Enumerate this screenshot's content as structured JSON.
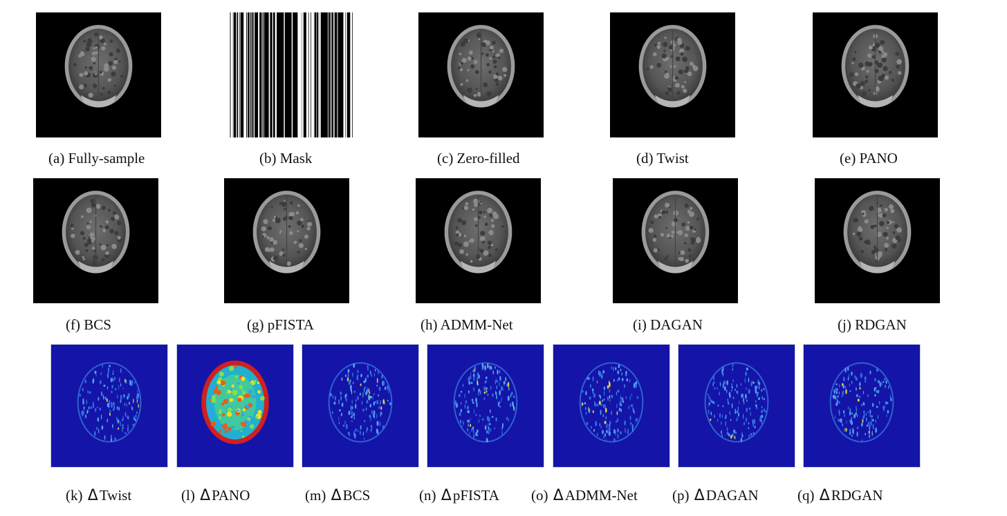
{
  "row1": [
    {
      "label": "(a) Fully-sample",
      "kind": "brain"
    },
    {
      "label": "(b) Mask",
      "kind": "mask"
    },
    {
      "label": "(c) Zero-filled",
      "kind": "brain"
    },
    {
      "label": "(d) Twist",
      "kind": "brain"
    },
    {
      "label": "(e) PANO",
      "kind": "brain"
    }
  ],
  "row2": [
    {
      "label": "(f) BCS",
      "kind": "brain"
    },
    {
      "label": "(g) pFISTA",
      "kind": "brain"
    },
    {
      "label": "(h) ADMM-Net",
      "kind": "brain"
    },
    {
      "label": "(i) DAGAN",
      "kind": "brain"
    },
    {
      "label": "(j) RDGAN",
      "kind": "brain"
    }
  ],
  "row3": [
    {
      "prefix": "(k)",
      "delta": "Δ",
      "name": "Twist"
    },
    {
      "prefix": "(l)",
      "delta": "Δ",
      "name": "PANO"
    },
    {
      "prefix": "(m)",
      "delta": "Δ",
      "name": "BCS"
    },
    {
      "prefix": "(n)",
      "delta": "Δ",
      "name": "pFISTA"
    },
    {
      "prefix": "(o)",
      "delta": "Δ",
      "name": "ADMM-Net"
    },
    {
      "prefix": "(p)",
      "delta": "Δ",
      "name": "DAGAN"
    },
    {
      "prefix": "(q)",
      "delta": "Δ",
      "name": "RDGAN"
    }
  ],
  "colors": {
    "errorBackground": "#1414a8",
    "imageBackground": "#000000"
  }
}
